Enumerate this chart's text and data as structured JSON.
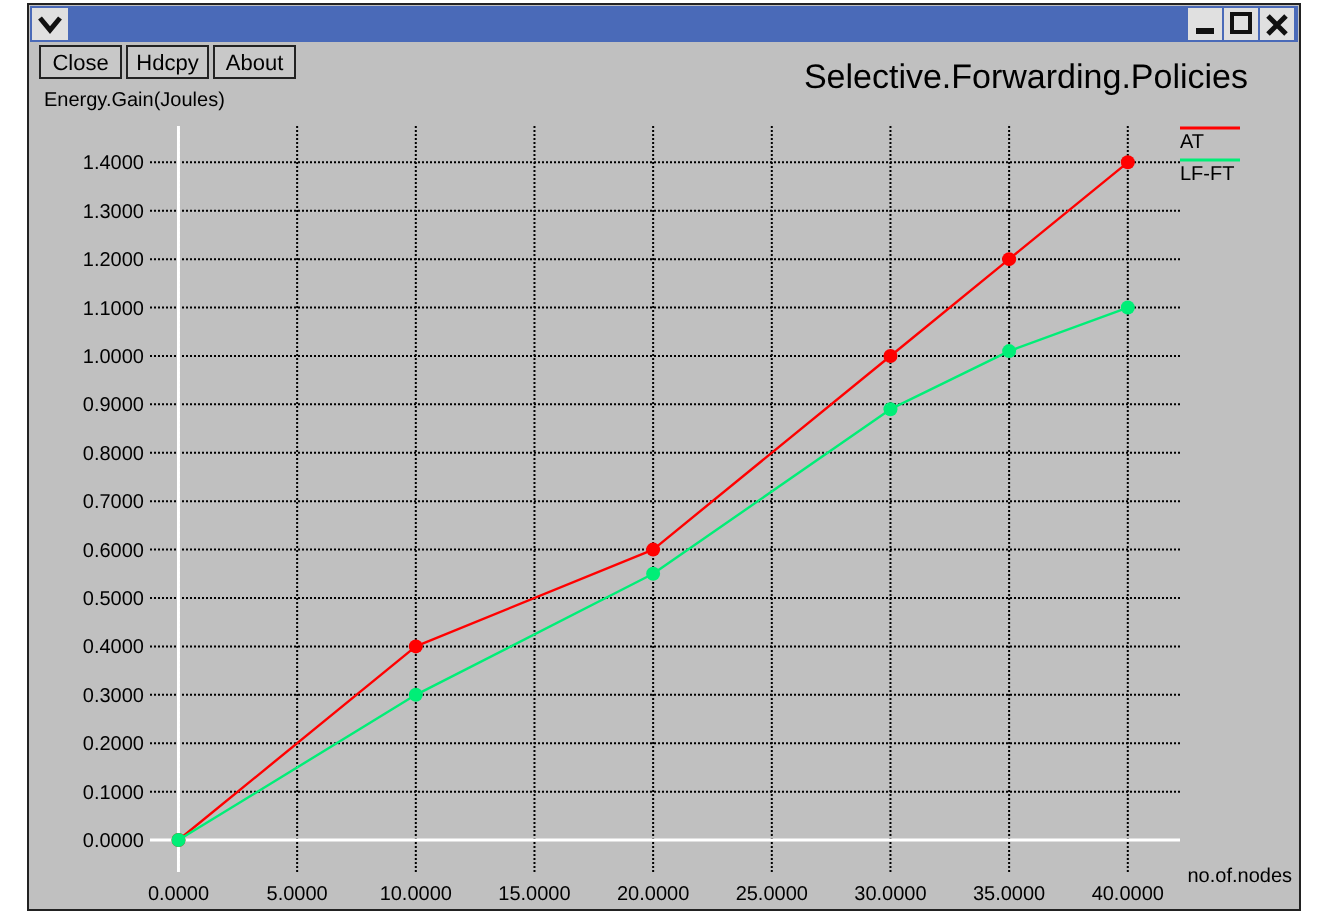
{
  "chart_data": {
    "type": "line",
    "title": "Selective.Forwarding.Policies",
    "xlabel": "no.of.nodes",
    "ylabel": "Energy.Gain(Joules)",
    "annotations": [
      "Close",
      "Hdcpy",
      "About"
    ],
    "x": [
      0,
      10,
      20,
      30,
      35,
      40
    ],
    "series": [
      {
        "name": "AT",
        "color": "#ff0000",
        "values": [
          0,
          0.4,
          0.6,
          1.0,
          1.2,
          1.4
        ]
      },
      {
        "name": "LF-FT",
        "color": "#00ee77",
        "values": [
          0,
          0.3,
          0.55,
          0.89,
          1.01,
          1.1
        ]
      }
    ],
    "xlim": [
      -1.2,
      42.2
    ],
    "ylim": [
      -0.066,
      1.475
    ],
    "xticks": [
      {
        "value": 0,
        "label": "0.0000"
      },
      {
        "value": 5,
        "label": "5.0000"
      },
      {
        "value": 10,
        "label": "10.0000"
      },
      {
        "value": 15,
        "label": "15.0000"
      },
      {
        "value": 20,
        "label": "20.0000"
      },
      {
        "value": 25,
        "label": "25.0000"
      },
      {
        "value": 30,
        "label": "30.0000"
      },
      {
        "value": 35,
        "label": "35.0000"
      },
      {
        "value": 40,
        "label": "40.0000"
      }
    ],
    "yticks": [
      {
        "value": 0,
        "label": "0.0000"
      },
      {
        "value": 0.1,
        "label": "0.1000"
      },
      {
        "value": 0.2,
        "label": "0.2000"
      },
      {
        "value": 0.3,
        "label": "0.3000"
      },
      {
        "value": 0.4,
        "label": "0.4000"
      },
      {
        "value": 0.5,
        "label": "0.5000"
      },
      {
        "value": 0.6,
        "label": "0.6000"
      },
      {
        "value": 0.7,
        "label": "0.7000"
      },
      {
        "value": 0.8,
        "label": "0.8000"
      },
      {
        "value": 0.9,
        "label": "0.9000"
      },
      {
        "value": 1.0,
        "label": "1.0000"
      },
      {
        "value": 1.1,
        "label": "1.1000"
      },
      {
        "value": 1.2,
        "label": "1.2000"
      },
      {
        "value": 1.3,
        "label": "1.3000"
      },
      {
        "value": 1.4,
        "label": "1.4000"
      }
    ],
    "grid": true,
    "legend": "top right",
    "marker": "circle",
    "line_style": "solid"
  }
}
